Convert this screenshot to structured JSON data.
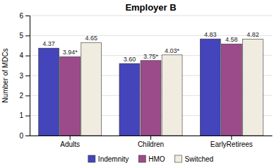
{
  "chart_data": {
    "type": "bar",
    "title": "Employer B",
    "y_label": "Number of MDCs",
    "categories": [
      "Adults",
      "Children",
      "EarlyRetirees"
    ],
    "series": [
      {
        "name": "Indemnity",
        "color": "#4444bb",
        "values": [
          4.37,
          3.6,
          4.83
        ],
        "value_labels": [
          "4.37",
          "3.60",
          "4.83"
        ]
      },
      {
        "name": "HMO",
        "color": "#9b4b8a",
        "values": [
          3.94,
          3.75,
          4.58
        ],
        "value_labels": [
          "3.94*",
          "3.75*",
          "4.58"
        ]
      },
      {
        "name": "Switched",
        "color": "#f0ece0",
        "values": [
          4.65,
          4.03,
          4.82
        ],
        "value_labels": [
          "4.65",
          "4.03*",
          "4.82"
        ]
      }
    ],
    "ylim": [
      0,
      6
    ],
    "yticks": [
      0,
      1,
      2,
      3,
      4,
      5,
      6
    ],
    "grid": true,
    "legend": "bottom",
    "data_labels": true
  }
}
